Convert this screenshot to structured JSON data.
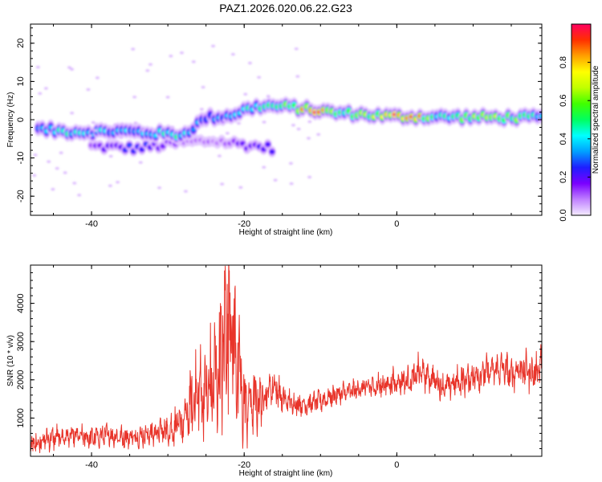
{
  "page": {
    "title": "PAZ1.2026.020.06.22.G23"
  },
  "chart_data": [
    {
      "type": "heatmap",
      "xlabel": "Height of straight line (km)",
      "ylabel": "Frequency (Hz)",
      "xlim": [
        -48,
        19
      ],
      "ylim": [
        -25,
        25
      ],
      "xticks": [
        -40,
        -20,
        0
      ],
      "xtick_labels": [
        "-40",
        "-20",
        "0"
      ],
      "yticks": [
        -20,
        -10,
        0,
        10,
        20
      ],
      "ytick_labels": [
        "-20",
        "-10",
        "0",
        "10",
        "20"
      ],
      "grid": false,
      "colorbar": {
        "label": "Normalized spectral amplitude",
        "range": [
          0,
          1
        ],
        "ticks": [
          0.0,
          0.2,
          0.4,
          0.6,
          0.8
        ],
        "tick_labels": [
          "0.0",
          "0.2",
          "0.4",
          "0.6",
          "0.8"
        ],
        "colormap": "rainbow",
        "colors": [
          "#f4ecff",
          "#c080ff",
          "#7a00ff",
          "#1e1eff",
          "#00a0ff",
          "#00ffff",
          "#00ff60",
          "#40ff00",
          "#c0ff00",
          "#ffff00",
          "#ffa000",
          "#ff3000",
          "#ff0060"
        ]
      },
      "ridge": {
        "x": [
          -47,
          -44,
          -40,
          -36,
          -32,
          -28,
          -25,
          -22,
          -20,
          -18,
          -16,
          -14,
          -11,
          -8,
          -5,
          -2,
          0,
          2,
          5,
          8,
          11,
          14,
          17,
          19
        ],
        "freq": [
          -2.5,
          -3.0,
          -3.2,
          -3.0,
          -3.5,
          -4.0,
          0.5,
          1.0,
          2.5,
          3.5,
          3.5,
          3.3,
          2.5,
          1.8,
          1.5,
          1.0,
          0.8,
          0.8,
          0.7,
          0.7,
          0.6,
          0.6,
          0.5,
          0.5
        ],
        "amplitude": [
          0.35,
          0.45,
          0.4,
          0.38,
          0.42,
          0.5,
          0.3,
          0.35,
          0.45,
          0.55,
          0.55,
          0.6,
          0.95,
          0.55,
          0.6,
          0.7,
          0.98,
          0.98,
          0.5,
          0.55,
          0.65,
          0.7,
          0.5,
          0.45
        ]
      },
      "secondary_ridge": {
        "x": [
          -40,
          -34,
          -28,
          -24,
          -20,
          -16
        ],
        "freq": [
          -7.0,
          -7.5,
          -6.0,
          -5.5,
          -6.5,
          -7.5
        ],
        "amplitude": [
          0.15,
          0.3,
          0.12,
          0.1,
          0.2,
          0.25
        ]
      }
    },
    {
      "type": "line",
      "xlabel": "Height of straight line (km)",
      "ylabel": "SNR (10 * v/v)",
      "xlim": [
        -48,
        19
      ],
      "ylim": [
        0,
        5000
      ],
      "xticks": [
        -40,
        -20,
        0
      ],
      "xtick_labels": [
        "-40",
        "-20",
        "0"
      ],
      "yticks": [
        1000,
        2000,
        3000,
        4000
      ],
      "ytick_labels": [
        "1000",
        "2000",
        "3000",
        "4000"
      ],
      "grid": false,
      "series": [
        {
          "color": "#e8342a",
          "x": [
            -48,
            -46,
            -44,
            -42,
            -40,
            -38,
            -36,
            -34,
            -32,
            -30,
            -28,
            -27,
            -26,
            -25,
            -24,
            -23,
            -22.5,
            -22,
            -21.5,
            -21,
            -20.5,
            -20,
            -19,
            -18,
            -17,
            -16,
            -15,
            -14,
            -12,
            -10,
            -8,
            -6,
            -4,
            -2,
            0,
            2,
            3,
            4,
            5,
            6,
            7,
            8,
            9,
            10,
            12,
            14,
            15,
            16,
            17,
            18,
            19
          ],
          "y": [
            300,
            450,
            500,
            520,
            480,
            560,
            500,
            520,
            600,
            700,
            850,
            1300,
            1700,
            1600,
            1900,
            2500,
            3200,
            4000,
            3300,
            2500,
            1900,
            1300,
            1400,
            1400,
            1700,
            1850,
            1500,
            1400,
            1350,
            1450,
            1600,
            1700,
            1800,
            1850,
            1950,
            2000,
            2200,
            2100,
            2000,
            1800,
            1850,
            1950,
            2000,
            2100,
            2200,
            2300,
            2100,
            2300,
            2250,
            2150,
            2500
          ],
          "spread": [
            300,
            300,
            350,
            300,
            300,
            300,
            300,
            300,
            350,
            500,
            600,
            1000,
            1200,
            1400,
            1600,
            2000,
            2400,
            2800,
            2600,
            2000,
            1600,
            1200,
            1000,
            700,
            600,
            500,
            400,
            350,
            300,
            300,
            300,
            300,
            300,
            350,
            350,
            400,
            500,
            400,
            400,
            350,
            400,
            400,
            400,
            450,
            450,
            500,
            450,
            450,
            500,
            450,
            500
          ]
        }
      ]
    }
  ]
}
